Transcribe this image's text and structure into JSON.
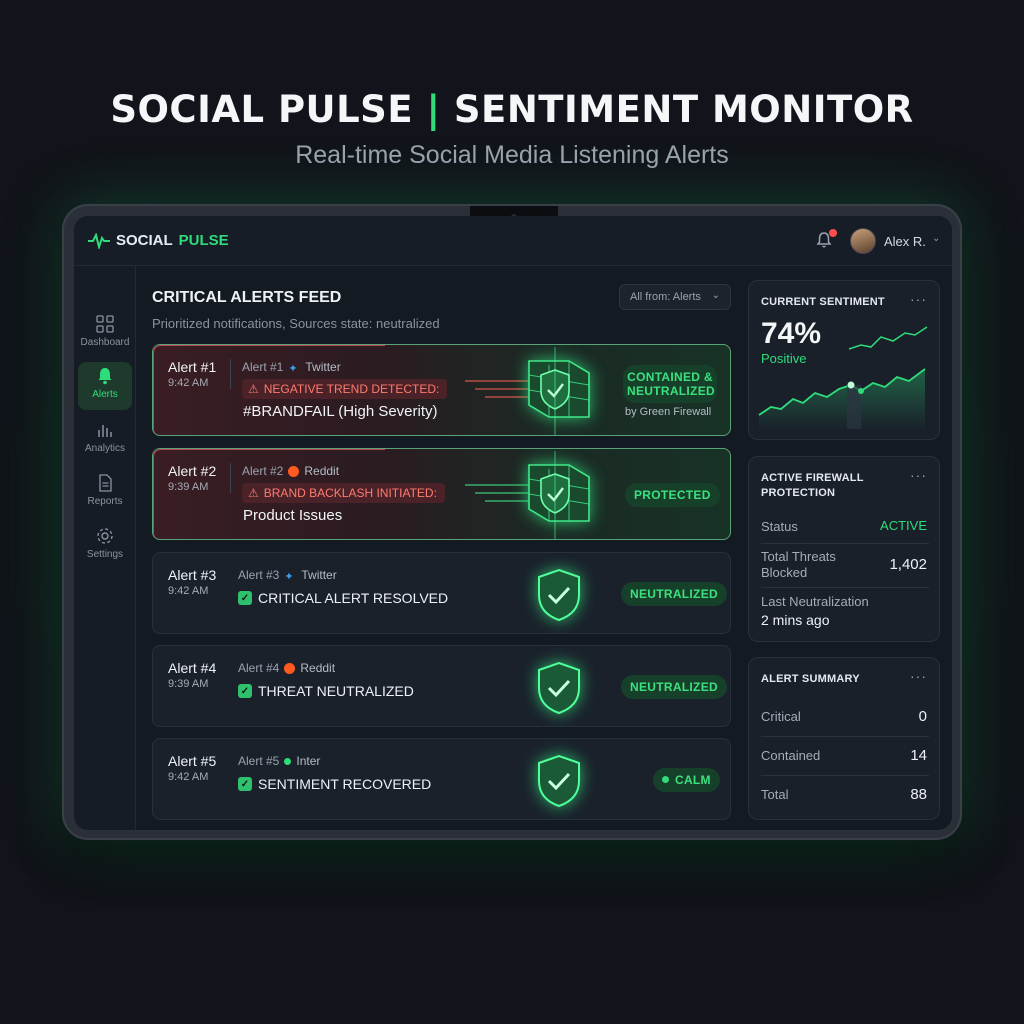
{
  "hero": {
    "title_left": "SOCIAL PULSE",
    "title_sep": "|",
    "title_right": "SENTIMENT MONITOR",
    "subtitle": "Real-time Social Media Listening Alerts"
  },
  "app": {
    "logo_word1": "SOCIAL",
    "logo_word2": "PULSE",
    "user_name": "Alex R.",
    "accent_color": "#2fdc7a"
  },
  "sidebar": {
    "items": [
      {
        "label": "Dashboard",
        "icon": "dashboard-icon"
      },
      {
        "label": "Alerts",
        "icon": "bell-icon",
        "active": true
      },
      {
        "label": "Analytics",
        "icon": "analytics-icon"
      },
      {
        "label": "Reports",
        "icon": "reports-icon"
      },
      {
        "label": "Settings",
        "icon": "gear-icon"
      }
    ]
  },
  "feed": {
    "title": "CRITICAL ALERTS FEED",
    "subtitle": "Prioritized notifications, Sources state: neutralized",
    "filter_label": "All from: Alerts",
    "alerts": [
      {
        "num": "Alert #1",
        "time": "9:42 AM",
        "meta_id": "Alert #1",
        "source": "Twitter",
        "warning": "NEGATIVE TREND DETECTED:",
        "detail": "#BRANDFAIL (High Severity)",
        "badge": "CONTAINED & NEUTRALIZED",
        "by": "by Green Firewall"
      },
      {
        "num": "Alert #2",
        "time": "9:39 AM",
        "meta_id": "Alert #2",
        "source": "Reddit",
        "warning": "BRAND BACKLASH INITIATED:",
        "detail": "Product Issues",
        "badge": "PROTECTED"
      },
      {
        "num": "Alert #3",
        "time": "9:42 AM",
        "meta_id": "Alert #3",
        "source": "Twitter",
        "status": "CRITICAL ALERT RESOLVED",
        "badge": "NEUTRALIZED"
      },
      {
        "num": "Alert #4",
        "time": "9:39 AM",
        "meta_id": "Alert #4",
        "source": "Reddit",
        "status": "THREAT NEUTRALIZED",
        "badge": "NEUTRALIZED"
      },
      {
        "num": "Alert #5",
        "time": "9:42 AM",
        "meta_id": "Alert #5",
        "source": "Inter",
        "status": "SENTIMENT RECOVERED",
        "badge": "CALM"
      }
    ]
  },
  "sentiment": {
    "title": "CURRENT SENTIMENT",
    "value": "74%",
    "label": "Positive"
  },
  "firewall": {
    "title_line1": "ACTIVE FIREWALL",
    "title_line2": "PROTECTION",
    "status_label": "Status",
    "status_value": "ACTIVE",
    "threats_label_line1": "Total Threats",
    "threats_label_line2": "Blocked",
    "threats_value": "1,402",
    "last_label": "Last Neutralization",
    "last_value": "2 mins ago"
  },
  "summary": {
    "title": "ALERT SUMMARY",
    "rows": [
      {
        "label": "Critical",
        "value": "0"
      },
      {
        "label": "Contained",
        "value": "14"
      },
      {
        "label": "Total",
        "value": "88"
      }
    ]
  }
}
